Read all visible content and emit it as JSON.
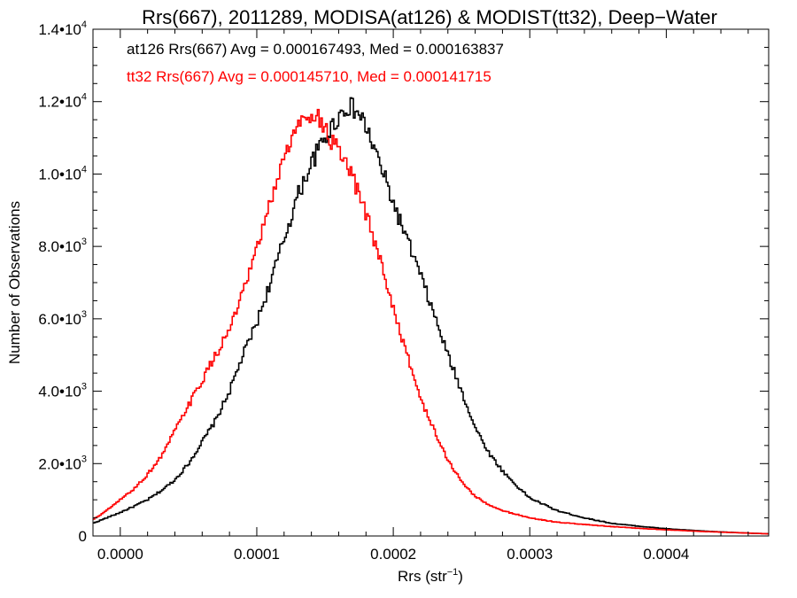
{
  "chart_data": {
    "type": "line",
    "style": "histogram-step",
    "title": "Rrs(667), 2011289, MODISA(at126) & MODIST(tt32), Deep−Water",
    "xlabel": "Rrs (str",
    "xlabel_sup": "−1",
    "xlabel_close": ")",
    "ylabel": "Number of Observations",
    "xlim": [
      -2e-05,
      0.000475
    ],
    "ylim": [
      0,
      14000
    ],
    "grid": false,
    "x_ticks": [
      0.0,
      0.0001,
      0.0002,
      0.0003,
      0.0004
    ],
    "x_tick_labels": [
      "0.0000",
      "0.0001",
      "0.0002",
      "0.0003",
      "0.0004"
    ],
    "y_ticks": [
      0,
      2000,
      4000,
      6000,
      8000,
      10000,
      12000,
      14000
    ],
    "y_tick_labels": [
      {
        "mant": "0",
        "exp": ""
      },
      {
        "mant": "2.0•10",
        "exp": "3"
      },
      {
        "mant": "4.0•10",
        "exp": "3"
      },
      {
        "mant": "6.0•10",
        "exp": "3"
      },
      {
        "mant": "8.0•10",
        "exp": "3"
      },
      {
        "mant": "1.0•10",
        "exp": "4"
      },
      {
        "mant": "1.2•10",
        "exp": "4"
      },
      {
        "mant": "1.4•10",
        "exp": "4"
      }
    ],
    "annotations": [
      {
        "text": "at126 Rrs(667) Avg = 0.000167493, Med = 0.000163837",
        "color": "#000000"
      },
      {
        "text": "tt32 Rrs(667) Avg = 0.000145710, Med = 0.000141715",
        "color": "#ff0000"
      }
    ],
    "series": [
      {
        "color": "#000000",
        "points": [
          [
            -2e-05,
            350
          ],
          [
            -1e-05,
            500
          ],
          [
            0.0,
            650
          ],
          [
            1e-05,
            820
          ],
          [
            2e-05,
            1000
          ],
          [
            3e-05,
            1250
          ],
          [
            4e-05,
            1550
          ],
          [
            5e-05,
            2000
          ],
          [
            6e-05,
            2600
          ],
          [
            7e-05,
            3200
          ],
          [
            8e-05,
            4000
          ],
          [
            9e-05,
            5000
          ],
          [
            0.0001,
            5900
          ],
          [
            0.00011,
            7000
          ],
          [
            0.00012,
            8200
          ],
          [
            0.00013,
            9400
          ],
          [
            0.00014,
            10300
          ],
          [
            0.00015,
            11000
          ],
          [
            0.00016,
            11600
          ],
          [
            0.000167,
            11900
          ],
          [
            0.000175,
            11650
          ],
          [
            0.00018,
            11300
          ],
          [
            0.00019,
            10300
          ],
          [
            0.0002,
            9200
          ],
          [
            0.00021,
            8200
          ],
          [
            0.00022,
            7200
          ],
          [
            0.00023,
            6100
          ],
          [
            0.00024,
            5000
          ],
          [
            0.00025,
            4000
          ],
          [
            0.00026,
            3000
          ],
          [
            0.00027,
            2300
          ],
          [
            0.00028,
            1800
          ],
          [
            0.00029,
            1400
          ],
          [
            0.0003,
            1050
          ],
          [
            0.00032,
            700
          ],
          [
            0.00034,
            500
          ],
          [
            0.00036,
            350
          ],
          [
            0.00038,
            270
          ],
          [
            0.0004,
            200
          ],
          [
            0.00043,
            130
          ],
          [
            0.00046,
            80
          ],
          [
            0.000475,
            60
          ]
        ]
      },
      {
        "color": "#ff0000",
        "points": [
          [
            -2e-05,
            450
          ],
          [
            -1e-05,
            700
          ],
          [
            0.0,
            1000
          ],
          [
            1e-05,
            1300
          ],
          [
            2e-05,
            1700
          ],
          [
            3e-05,
            2200
          ],
          [
            4e-05,
            2900
          ],
          [
            5e-05,
            3600
          ],
          [
            6e-05,
            4300
          ],
          [
            7e-05,
            5000
          ],
          [
            8e-05,
            5700
          ],
          [
            9e-05,
            6700
          ],
          [
            0.0001,
            7900
          ],
          [
            0.00011,
            9200
          ],
          [
            0.00012,
            10500
          ],
          [
            0.00013,
            11300
          ],
          [
            0.000138,
            11700
          ],
          [
            0.000145,
            11600
          ],
          [
            0.00015,
            11200
          ],
          [
            0.00016,
            10600
          ],
          [
            0.00017,
            9900
          ],
          [
            0.00018,
            8900
          ],
          [
            0.00019,
            7700
          ],
          [
            0.0002,
            6300
          ],
          [
            0.00021,
            5000
          ],
          [
            0.00022,
            3800
          ],
          [
            0.00023,
            2900
          ],
          [
            0.00024,
            2100
          ],
          [
            0.00025,
            1500
          ],
          [
            0.00026,
            1100
          ],
          [
            0.00027,
            850
          ],
          [
            0.00028,
            700
          ],
          [
            0.00029,
            600
          ],
          [
            0.0003,
            500
          ],
          [
            0.00032,
            380
          ],
          [
            0.00034,
            320
          ],
          [
            0.00036,
            260
          ],
          [
            0.00038,
            210
          ],
          [
            0.0004,
            170
          ],
          [
            0.00043,
            120
          ],
          [
            0.00046,
            80
          ],
          [
            0.000475,
            60
          ]
        ]
      }
    ]
  }
}
